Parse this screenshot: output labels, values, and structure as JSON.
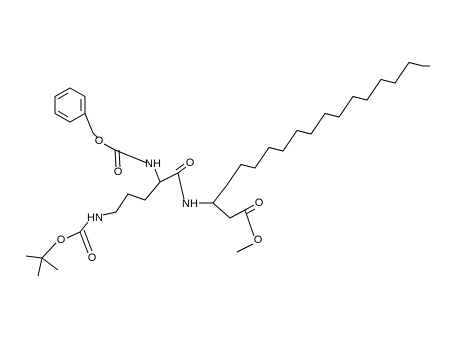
{
  "atoms": [
    {
      "label": "O"
    },
    {
      "label": "NH"
    },
    {
      "label": "O"
    },
    {
      "label": "O"
    },
    {
      "label": "NH"
    },
    {
      "label": "HN"
    },
    {
      "label": "O"
    },
    {
      "label": "O"
    },
    {
      "label": "O"
    },
    {
      "label": "O"
    }
  ]
}
